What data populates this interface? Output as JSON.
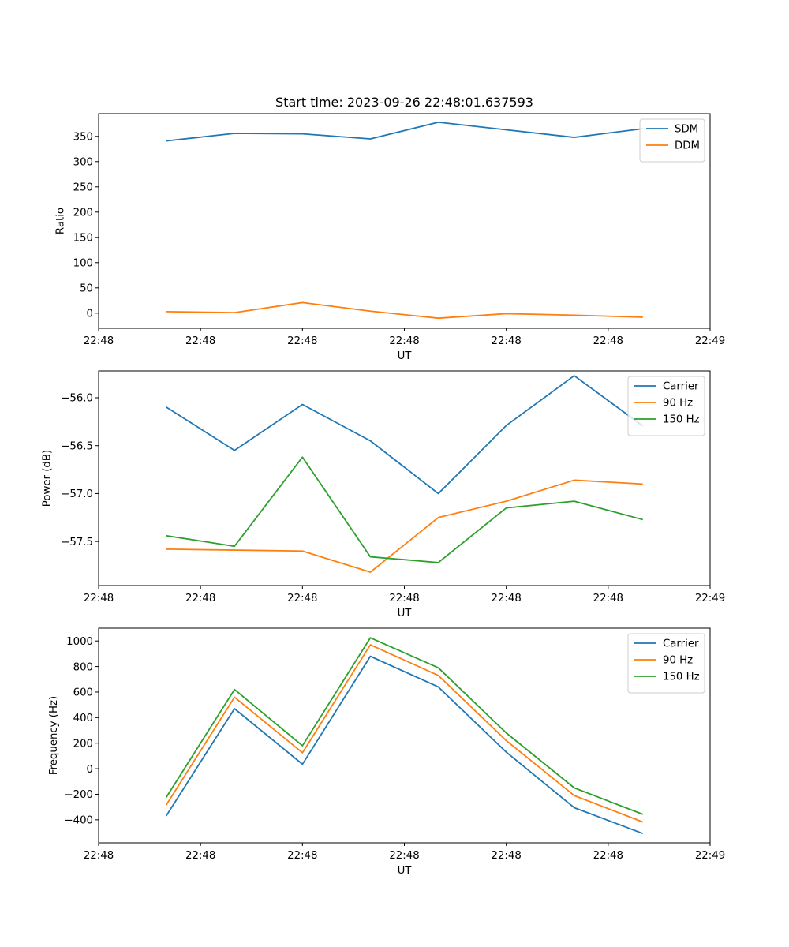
{
  "figure": {
    "title": "Start time: 2023-09-26 22:48:01.637593"
  },
  "chart_data": [
    {
      "type": "line",
      "title": "Start time: 2023-09-26 22:48:01.637593",
      "xlabel": "UT",
      "ylabel": "Ratio",
      "x": [
        1,
        2,
        3,
        4,
        5,
        6,
        7,
        8
      ],
      "xlim": [
        0,
        9
      ],
      "x_ticks": [
        0,
        1.5,
        3,
        4.5,
        6,
        7.5,
        9
      ],
      "x_tick_labels": [
        "22:48",
        "22:48",
        "22:48",
        "22:48",
        "22:48",
        "22:48",
        "22:49"
      ],
      "ylim": [
        -30,
        395
      ],
      "y_ticks": [
        0,
        50,
        100,
        150,
        200,
        250,
        300,
        350
      ],
      "y_tick_labels": [
        "0",
        "50",
        "100",
        "150",
        "200",
        "250",
        "300",
        "350"
      ],
      "legend_position": "top-right",
      "series": [
        {
          "name": "SDM",
          "color": "#1f77b4",
          "values": [
            341,
            356,
            355,
            345,
            378,
            363,
            348,
            365
          ]
        },
        {
          "name": "DDM",
          "color": "#ff7f0e",
          "values": [
            3,
            1,
            21,
            4,
            -10,
            -1,
            -4,
            -8
          ]
        }
      ]
    },
    {
      "type": "line",
      "title": "",
      "xlabel": "UT",
      "ylabel": "Power (dB)",
      "x": [
        1,
        2,
        3,
        4,
        5,
        6,
        7,
        8
      ],
      "xlim": [
        0,
        9
      ],
      "x_ticks": [
        0,
        1.5,
        3,
        4.5,
        6,
        7.5,
        9
      ],
      "x_tick_labels": [
        "22:48",
        "22:48",
        "22:48",
        "22:48",
        "22:48",
        "22:48",
        "22:49"
      ],
      "ylim": [
        -57.96,
        -55.72
      ],
      "y_ticks": [
        -57.5,
        -57.0,
        -56.5,
        -56.0
      ],
      "y_tick_labels": [
        "−57.5",
        "−57.0",
        "−56.5",
        "−56.0"
      ],
      "legend_position": "top-right",
      "series": [
        {
          "name": "Carrier",
          "color": "#1f77b4",
          "values": [
            -56.1,
            -56.55,
            -56.07,
            -56.45,
            -57.0,
            -56.29,
            -55.77,
            -56.29
          ]
        },
        {
          "name": "90 Hz",
          "color": "#ff7f0e",
          "values": [
            -57.58,
            -57.59,
            -57.6,
            -57.82,
            -57.25,
            -57.08,
            -56.86,
            -56.9
          ]
        },
        {
          "name": "150 Hz",
          "color": "#2ca02c",
          "values": [
            -57.44,
            -57.55,
            -56.62,
            -57.66,
            -57.72,
            -57.15,
            -57.08,
            -57.27
          ]
        }
      ]
    },
    {
      "type": "line",
      "title": "",
      "xlabel": "UT",
      "ylabel": "Frequency (Hz)",
      "x": [
        1,
        2,
        3,
        4,
        5,
        6,
        7,
        8
      ],
      "xlim": [
        0,
        9
      ],
      "x_ticks": [
        0,
        1.5,
        3,
        4.5,
        6,
        7.5,
        9
      ],
      "x_tick_labels": [
        "22:48",
        "22:48",
        "22:48",
        "22:48",
        "22:48",
        "22:48",
        "22:49"
      ],
      "ylim": [
        -580,
        1100
      ],
      "y_ticks": [
        -400,
        -200,
        0,
        200,
        400,
        600,
        800,
        1000
      ],
      "y_tick_labels": [
        "−400",
        "−200",
        "0",
        "200",
        "400",
        "600",
        "800",
        "1000"
      ],
      "legend_position": "top-right",
      "series": [
        {
          "name": "Carrier",
          "color": "#1f77b4",
          "values": [
            -365,
            470,
            35,
            880,
            640,
            130,
            -305,
            -505
          ]
        },
        {
          "name": "90 Hz",
          "color": "#ff7f0e",
          "values": [
            -280,
            560,
            125,
            970,
            730,
            220,
            -210,
            -415
          ]
        },
        {
          "name": "150 Hz",
          "color": "#2ca02c",
          "values": [
            -220,
            620,
            180,
            1025,
            790,
            280,
            -150,
            -355
          ]
        }
      ]
    }
  ]
}
